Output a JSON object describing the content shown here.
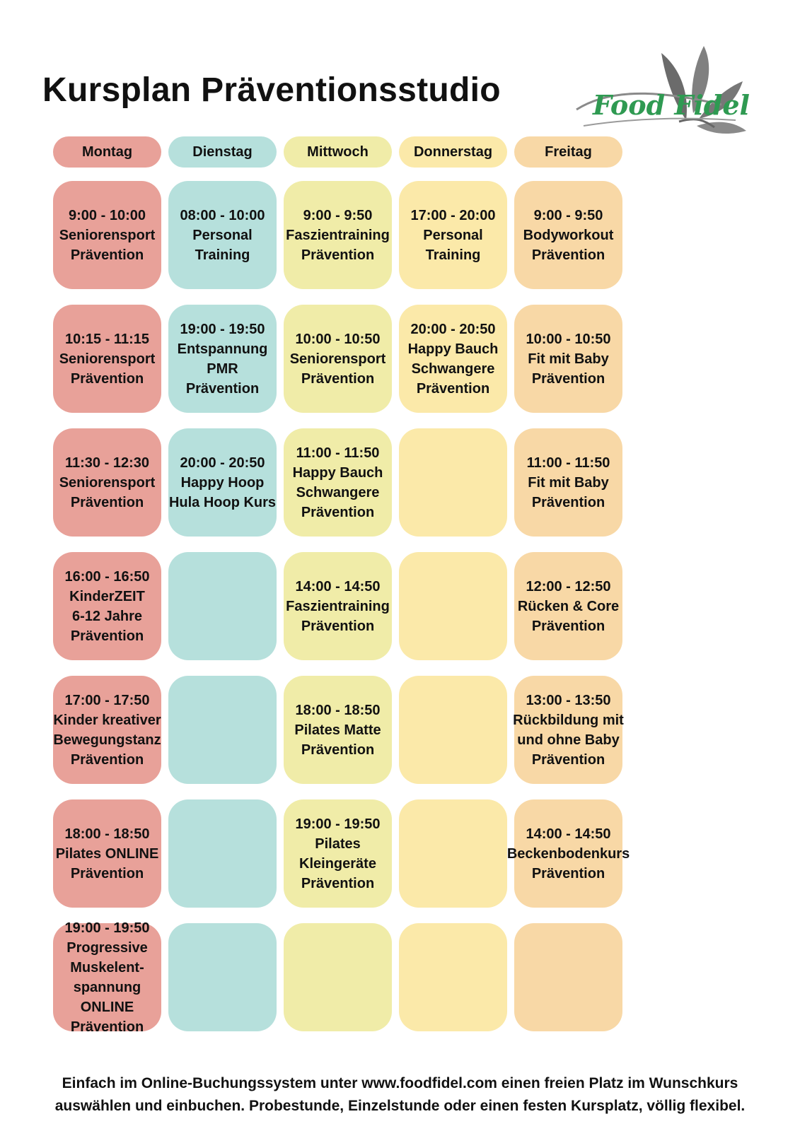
{
  "title": "Kursplan Präventionsstudio",
  "logo": {
    "text": "Food Fidel",
    "icon": "leaf-icon"
  },
  "colors": {
    "montag": "#e8a199",
    "dienstag": "#b6e0dc",
    "mittwoch": "#f0eca8",
    "donnerstag": "#fbe9a9",
    "freitag": "#f8d8a6"
  },
  "days": [
    "Montag",
    "Dienstag",
    "Mittwoch",
    "Donnerstag",
    "Freitag"
  ],
  "schedule": [
    [
      [
        "9:00 - 10:00",
        "Seniorensport",
        "Prävention"
      ],
      [
        "10:15 - 11:15",
        "Seniorensport",
        "Prävention"
      ],
      [
        "11:30 - 12:30",
        "Seniorensport",
        "Prävention"
      ],
      [
        "16:00 - 16:50",
        "KinderZEIT",
        "6-12 Jahre",
        "Prävention"
      ],
      [
        "17:00 - 17:50",
        "Kinder kreativer",
        "Bewegungstanz",
        "Prävention"
      ],
      [
        "18:00 - 18:50",
        "Pilates ONLINE",
        "Prävention"
      ],
      [
        "19:00 - 19:50",
        "Progressive",
        "Muskelent-",
        "spannung",
        "ONLINE",
        "Prävention"
      ]
    ],
    [
      [
        "08:00 - 10:00",
        "Personal",
        "Training"
      ],
      [
        "19:00 - 19:50",
        "Entspannung",
        "PMR",
        "Prävention"
      ],
      [
        "20:00 - 20:50",
        "Happy Hoop",
        "Hula Hoop Kurs"
      ],
      [],
      [],
      [],
      []
    ],
    [
      [
        "9:00 - 9:50",
        "Faszientraining",
        "Prävention"
      ],
      [
        "10:00 - 10:50",
        "Seniorensport",
        "Prävention"
      ],
      [
        "11:00 - 11:50",
        "Happy Bauch",
        "Schwangere",
        "Prävention"
      ],
      [
        "14:00 - 14:50",
        "Faszientraining",
        "Prävention"
      ],
      [
        "18:00 - 18:50",
        "Pilates Matte",
        "Prävention"
      ],
      [
        "19:00 - 19:50",
        "Pilates",
        "Kleingeräte",
        "Prävention"
      ],
      []
    ],
    [
      [
        "17:00 - 20:00",
        "Personal",
        "Training"
      ],
      [
        "20:00 - 20:50",
        "Happy Bauch",
        "Schwangere",
        "Prävention"
      ],
      [],
      [],
      [],
      [],
      []
    ],
    [
      [
        "9:00 - 9:50",
        "Bodyworkout",
        "Prävention"
      ],
      [
        "10:00 - 10:50",
        "Fit mit Baby",
        "Prävention"
      ],
      [
        "11:00 - 11:50",
        "Fit mit Baby",
        "Prävention"
      ],
      [
        "12:00 - 12:50",
        "Rücken & Core",
        "Prävention"
      ],
      [
        "13:00 - 13:50",
        "Rückbildung mit",
        "und ohne Baby",
        "Prävention"
      ],
      [
        "14:00 - 14:50",
        "Beckenbodenkurs",
        "Prävention"
      ],
      []
    ]
  ],
  "footer": [
    "Einfach im Online-Buchungssystem unter www.foodfidel.com einen freien Platz im Wunschkurs",
    "auswählen und einbuchen. Probestunde, Einzelstunde oder einen festen Kursplatz, völlig flexibel."
  ]
}
